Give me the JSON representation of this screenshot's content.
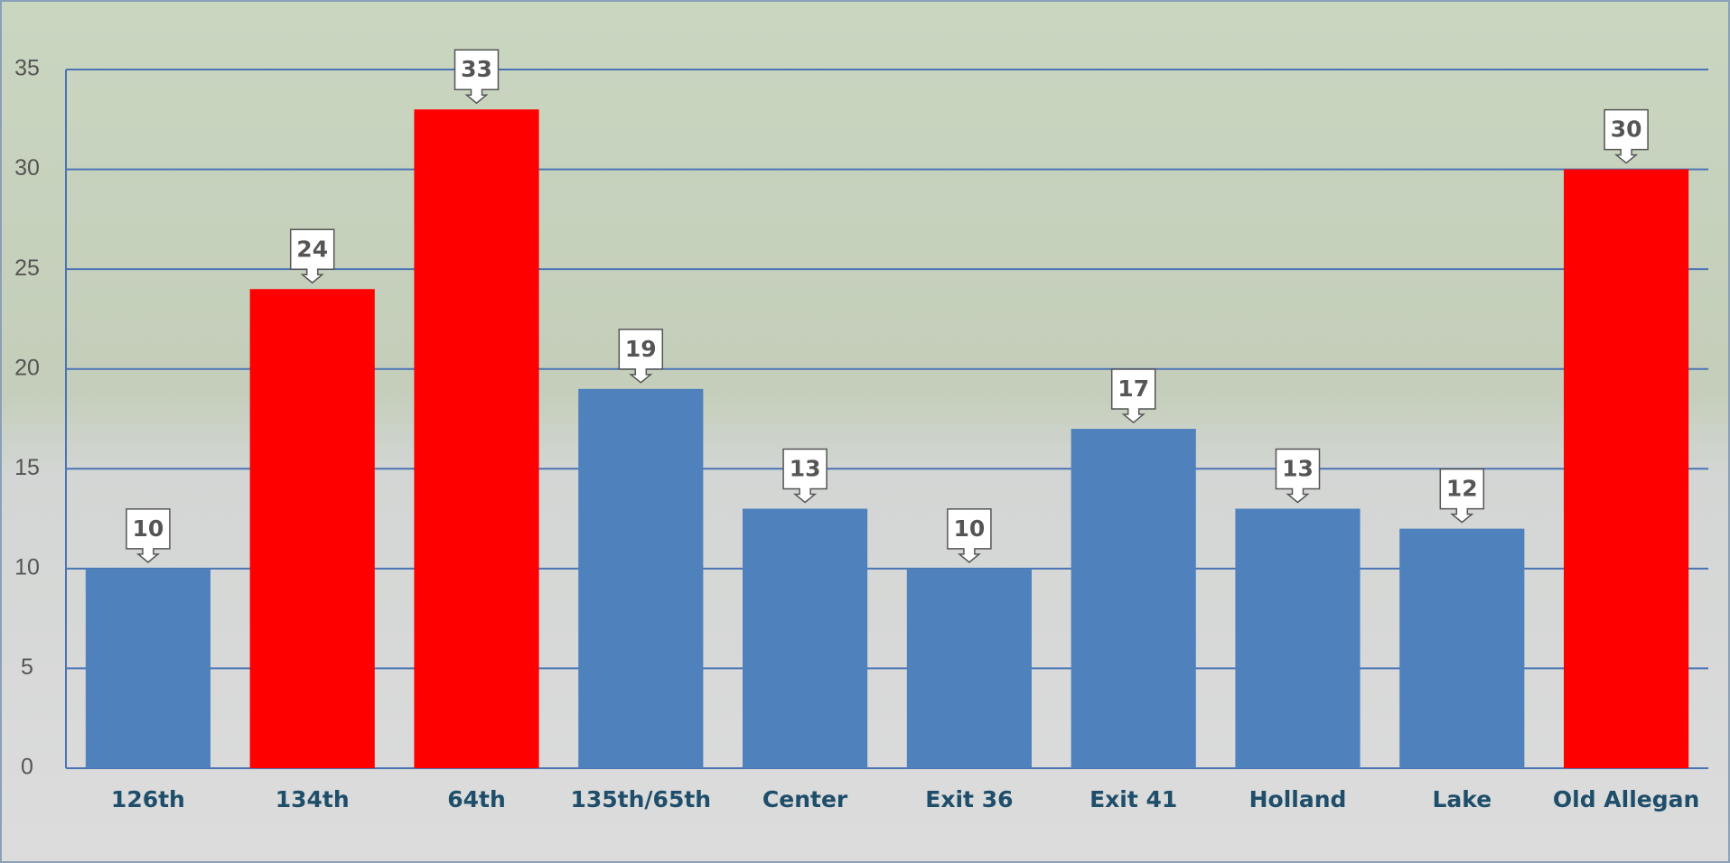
{
  "chart_data": {
    "type": "bar",
    "categories": [
      "126th",
      "134th",
      "64th",
      "135th/65th",
      "Center",
      "Exit 36",
      "Exit 41",
      "Holland",
      "Lake",
      "Old Allegan"
    ],
    "values": [
      10,
      24,
      33,
      19,
      13,
      10,
      17,
      13,
      12,
      30
    ],
    "colors": [
      "#4f81bd",
      "#ff0000",
      "#ff0000",
      "#4f81bd",
      "#4f81bd",
      "#4f81bd",
      "#4f81bd",
      "#4f81bd",
      "#4f81bd",
      "#ff0000"
    ],
    "ylim": [
      0,
      35
    ],
    "yticks": [
      0,
      5,
      10,
      15,
      20,
      25,
      30,
      35
    ],
    "grid": true
  }
}
